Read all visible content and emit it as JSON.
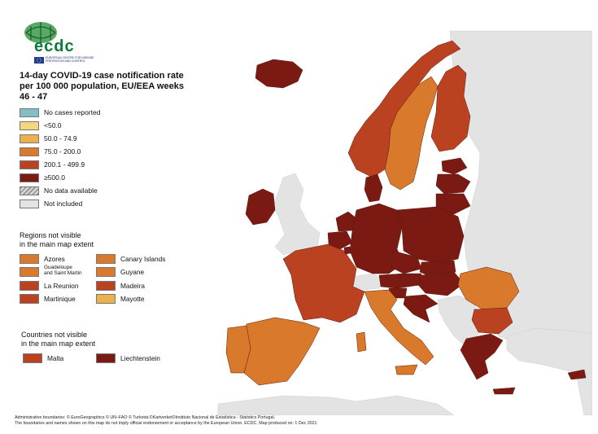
{
  "logo": {
    "wordmark": "ecdc",
    "subtitle": "EUROPEAN CENTRE FOR DISEASE PREVENTION AND CONTROL"
  },
  "title": "14-day COVID-19 case notification rate per 100 000 population, EU/EEA weeks 46 - 47",
  "legend": {
    "items": [
      {
        "label": "No cases reported",
        "color": "#7fbfc5"
      },
      {
        "label": "<50.0",
        "color": "#f5d77b"
      },
      {
        "label": "50.0 - 74.9",
        "color": "#ecb14b"
      },
      {
        "label": "75.0 - 200.0",
        "color": "#d9792b"
      },
      {
        "label": "200.1 - 499.9",
        "color": "#bb4220"
      },
      {
        "label": "≥500.0",
        "color": "#7a1a12"
      },
      {
        "label": "No data available",
        "color": "hatch"
      },
      {
        "label": "Not included",
        "color": "#e3e3e3"
      }
    ]
  },
  "regions": {
    "heading_line1": "Regions not visible",
    "heading_line2": "in the main map extent",
    "items": [
      {
        "label": "Azores",
        "color": "#d9792b"
      },
      {
        "label": "Canary Islands",
        "color": "#d9792b"
      },
      {
        "label": "Guadeloupe and Saint Martin",
        "label_line1": "Guadeloupe",
        "label_line2": "and Saint Martin",
        "color": "#d9792b"
      },
      {
        "label": "Guyane",
        "color": "#d9792b"
      },
      {
        "label": "La Reunion",
        "color": "#bb4220"
      },
      {
        "label": "Madeira",
        "color": "#bb4220"
      },
      {
        "label": "Martinique",
        "color": "#bb4220"
      },
      {
        "label": "Mayotte",
        "color": "#ecb14b"
      }
    ]
  },
  "countries": {
    "heading_line1": "Countries not visible",
    "heading_line2": "in the main map extent",
    "items": [
      {
        "label": "Malta",
        "color": "#bb4220"
      },
      {
        "label": "Liechtenstein",
        "color": "#7a1a12"
      }
    ]
  },
  "footer": {
    "line1": "Administrative boundaries: © EuroGeographics © UN–FAO © Turkstat.©Kartverket©Instituto Nacional de Estatística - Statistics Portugal.",
    "line2": "The boundaries and names shown on this map do not imply official endorsement or acceptance by the European Union. ECDC. Map produced on: 1 Dec 2021"
  },
  "map_colors": {
    "not_included": "#e3e3e3",
    "sea": "#ffffff",
    "border": "#5a1a10"
  },
  "countries_map": [
    {
      "name": "Iceland",
      "color": "#7a1a12"
    },
    {
      "name": "Ireland",
      "color": "#7a1a12"
    },
    {
      "name": "Norway",
      "color": "#bb4220"
    },
    {
      "name": "Sweden",
      "color": "#d9792b"
    },
    {
      "name": "Finland",
      "color": "#bb4220"
    },
    {
      "name": "Estonia",
      "color": "#7a1a12"
    },
    {
      "name": "Latvia",
      "color": "#7a1a12"
    },
    {
      "name": "Lithuania",
      "color": "#7a1a12"
    },
    {
      "name": "Denmark",
      "color": "#7a1a12"
    },
    {
      "name": "Netherlands",
      "color": "#7a1a12"
    },
    {
      "name": "Belgium",
      "color": "#7a1a12"
    },
    {
      "name": "Germany",
      "color": "#7a1a12"
    },
    {
      "name": "Poland",
      "color": "#7a1a12"
    },
    {
      "name": "Czechia",
      "color": "#7a1a12"
    },
    {
      "name": "Slovakia",
      "color": "#7a1a12"
    },
    {
      "name": "Austria",
      "color": "#7a1a12"
    },
    {
      "name": "Hungary",
      "color": "#7a1a12"
    },
    {
      "name": "Slovenia",
      "color": "#7a1a12"
    },
    {
      "name": "Croatia",
      "color": "#7a1a12"
    },
    {
      "name": "France",
      "color": "#bb4220"
    },
    {
      "name": "Spain",
      "color": "#d9792b"
    },
    {
      "name": "Portugal",
      "color": "#d9792b"
    },
    {
      "name": "Italy",
      "color": "#d9792b"
    },
    {
      "name": "Romania",
      "color": "#d9792b"
    },
    {
      "name": "Bulgaria",
      "color": "#bb4220"
    },
    {
      "name": "Greece",
      "color": "#7a1a12"
    },
    {
      "name": "Cyprus",
      "color": "#7a1a12"
    },
    {
      "name": "Luxembourg",
      "color": "#7a1a12"
    }
  ]
}
